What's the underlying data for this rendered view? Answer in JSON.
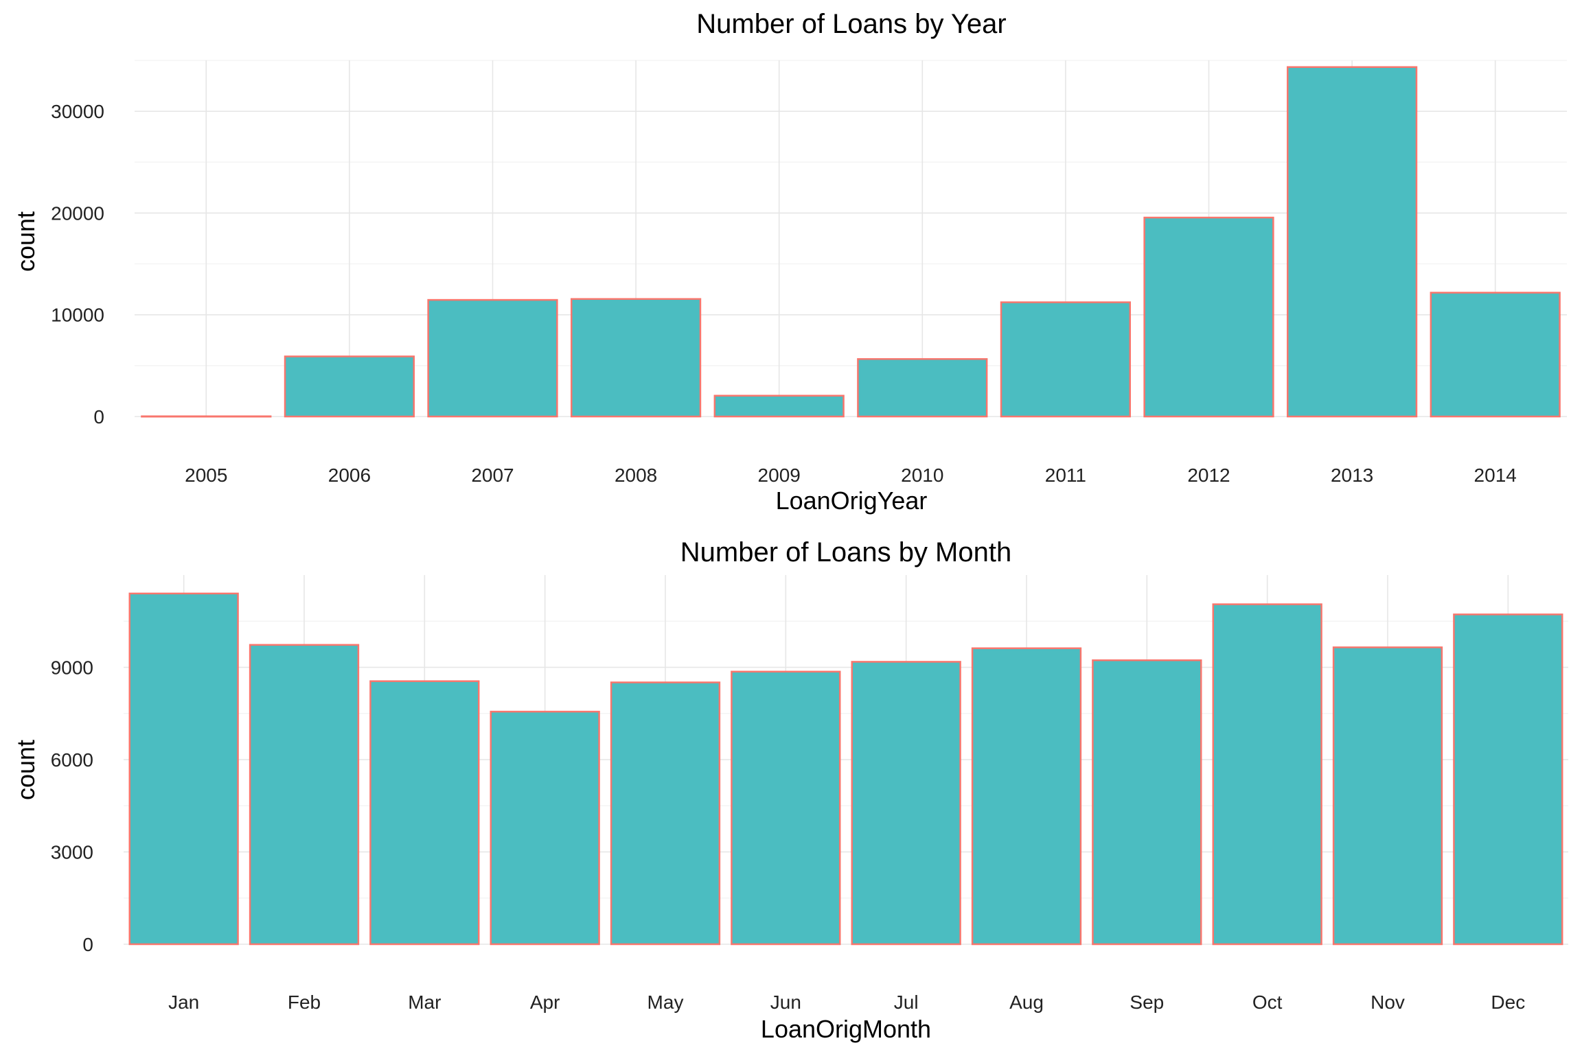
{
  "colors": {
    "bar_fill": "#4BBDC1",
    "bar_outline": "#F8766D",
    "grid": "#e6e6e6"
  },
  "chart_data": [
    {
      "type": "bar",
      "title": "Number of Loans by Year",
      "xlabel": "LoanOrigYear",
      "ylabel": "count",
      "categories": [
        "2005",
        "2006",
        "2007",
        "2008",
        "2009",
        "2010",
        "2011",
        "2012",
        "2013",
        "2014"
      ],
      "values": [
        22,
        5906,
        11460,
        11552,
        2047,
        5652,
        11228,
        19553,
        34345,
        12172
      ],
      "yticks": [
        0,
        10000,
        20000,
        30000
      ],
      "ylim": [
        0,
        35000
      ],
      "grid": true,
      "legend": "none"
    },
    {
      "type": "bar",
      "title": "Number of Loans by Month",
      "xlabel": "LoanOrigMonth",
      "ylabel": "count",
      "categories": [
        "Jan",
        "Feb",
        "Mar",
        "Apr",
        "May",
        "Jun",
        "Jul",
        "Aug",
        "Sep",
        "Oct",
        "Nov",
        "Dec"
      ],
      "values": [
        11400,
        9730,
        8550,
        7560,
        8510,
        8860,
        9180,
        9620,
        9230,
        11050,
        9650,
        10720
      ],
      "yticks": [
        0,
        3000,
        6000,
        9000
      ],
      "ylim": [
        0,
        12000
      ],
      "grid": true,
      "legend": "none"
    }
  ]
}
